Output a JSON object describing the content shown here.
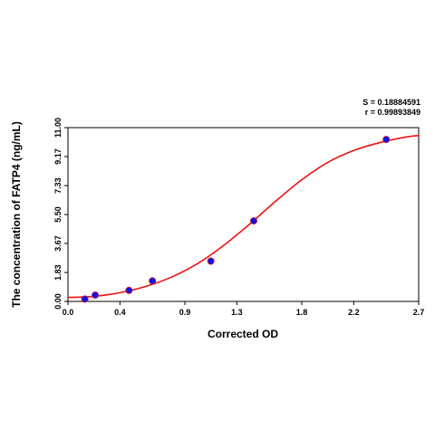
{
  "chart_data": {
    "type": "scatter",
    "xlabel": "Corrected OD",
    "ylabel": "The concentration of FATP4 (ng/mL)",
    "xlim": [
      0.0,
      2.7
    ],
    "ylim": [
      0.0,
      11.0
    ],
    "x_ticks": [
      "0.0",
      "0.4",
      "0.9",
      "1.3",
      "1.8",
      "2.2",
      "2.7"
    ],
    "y_ticks": [
      "0.00",
      "1.83",
      "3.67",
      "5.50",
      "7.33",
      "9.17",
      "11.00"
    ],
    "grid": false,
    "stats": {
      "s_text": "S = 0.18884591",
      "r_text": "r = 0.99893849"
    },
    "series": [
      {
        "kind": "points",
        "color": "#1010ee",
        "x": [
          0.13,
          0.21,
          0.47,
          0.65,
          1.1,
          1.43,
          2.45
        ],
        "y": [
          0.15,
          0.4,
          0.7,
          1.3,
          2.55,
          5.1,
          10.25
        ]
      },
      {
        "kind": "fit-curve",
        "color": "#ee1111",
        "x": [
          0.0,
          0.2,
          0.4,
          0.6,
          0.8,
          1.0,
          1.2,
          1.4,
          1.6,
          1.8,
          2.0,
          2.2,
          2.4,
          2.6,
          2.7
        ],
        "y": [
          0.25,
          0.32,
          0.55,
          0.95,
          1.55,
          2.4,
          3.55,
          4.9,
          6.35,
          7.7,
          8.8,
          9.55,
          10.05,
          10.4,
          10.5
        ]
      }
    ]
  }
}
